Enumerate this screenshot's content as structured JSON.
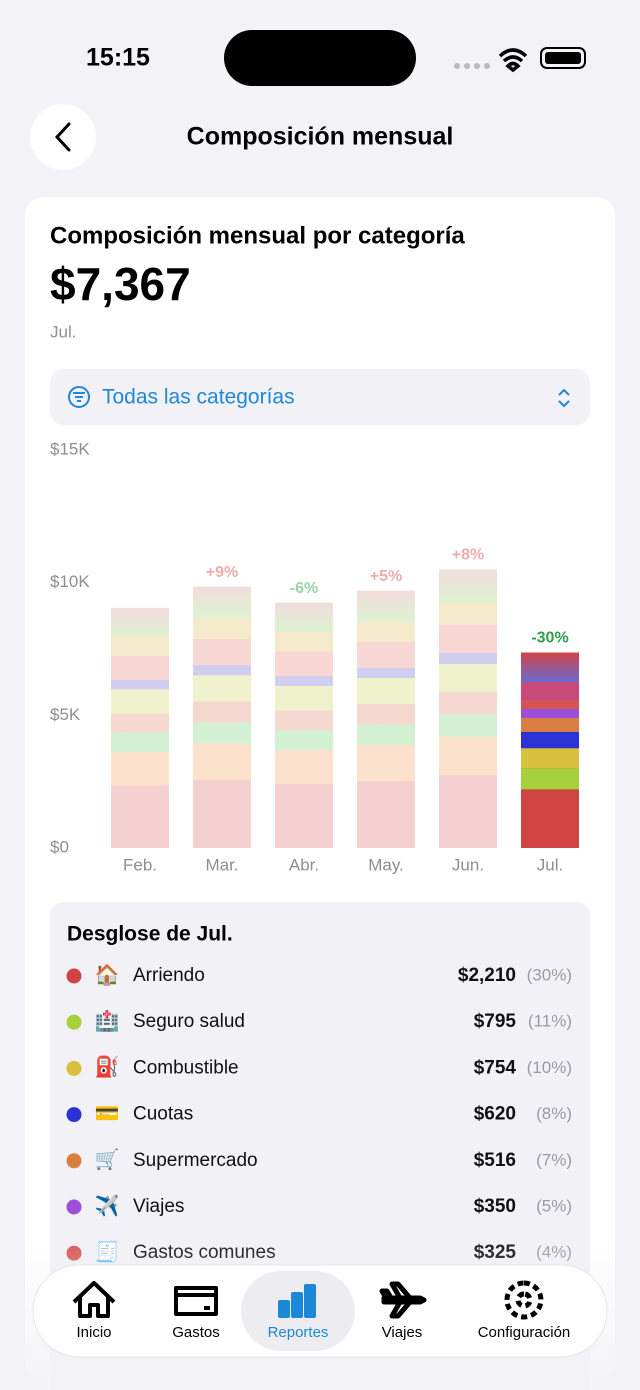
{
  "status_bar": {
    "time": "15:15"
  },
  "header": {
    "title": "Composición mensual"
  },
  "summary": {
    "title": "Composición mensual por categoría",
    "total": "$7,367",
    "period": "Jul."
  },
  "filter": {
    "label": "Todas las categorías"
  },
  "chart": {
    "type": "stacked-bar",
    "categories": [
      "Feb.",
      "Mar.",
      "Abr.",
      "May.",
      "Jun.",
      "Jul."
    ],
    "values": [
      9050,
      9850,
      9250,
      9700,
      10500,
      7367
    ],
    "annotations": [
      null,
      "+9%",
      "-6%",
      "+5%",
      "+8%",
      "-30%"
    ],
    "annotation_colors": [
      null,
      "#e05a5a",
      "#3aa657",
      "#e05a5a",
      "#e05a5a",
      "#2f9e4f"
    ],
    "selected_index": 5,
    "ylim": [
      0,
      15000
    ],
    "yticks": [
      {
        "value": 0,
        "label": "$0"
      },
      {
        "value": 5000,
        "label": "$5K"
      },
      {
        "value": 10000,
        "label": "$10K"
      },
      {
        "value": 15000,
        "label": "$15K"
      }
    ]
  },
  "breakdown": {
    "title": "Desglose de Jul.",
    "items": [
      {
        "name": "Arriendo",
        "icon": "🏠",
        "color": "#d04444",
        "value": 2210,
        "value_label": "$2,210",
        "share": "(30%)"
      },
      {
        "name": "Seguro salud",
        "icon": "🏥",
        "color": "#a6d13c",
        "value": 795,
        "value_label": "$795",
        "share": "(11%)"
      },
      {
        "name": "Combustible",
        "icon": "⛽",
        "color": "#d8c13c",
        "value": 754,
        "value_label": "$754",
        "share": "(10%)"
      },
      {
        "name": "Cuotas",
        "icon": "💳",
        "color": "#2b33d6",
        "value": 620,
        "value_label": "$620",
        "share": "(8%)"
      },
      {
        "name": "Supermercado",
        "icon": "🛒",
        "color": "#d98040",
        "value": 516,
        "value_label": "$516",
        "share": "(7%)"
      },
      {
        "name": "Viajes",
        "icon": "✈️",
        "color": "#9a4fd6",
        "value": 350,
        "value_label": "$350",
        "share": "(5%)"
      },
      {
        "name": "Gastos comunes",
        "icon": "🧾",
        "color": "#d85454",
        "value": 325,
        "value_label": "$325",
        "share": "(4%)"
      }
    ]
  },
  "tab_bar": {
    "items": [
      "Inicio",
      "Gastos",
      "Reportes",
      "Viajes",
      "Configuración"
    ],
    "selected_index": 2
  }
}
